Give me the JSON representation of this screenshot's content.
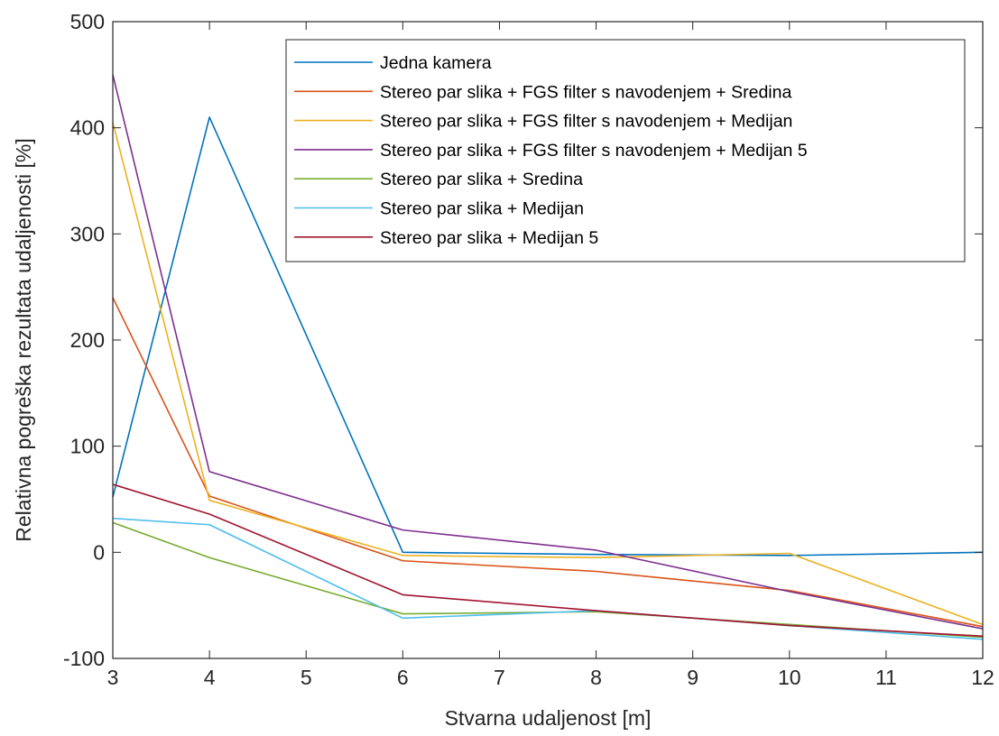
{
  "chart_data": {
    "type": "line",
    "title": "",
    "xlabel": "Stvarna udaljenost [m]",
    "ylabel": "Relativna pogreška rezultata udaljenosti [%]",
    "xlim": [
      3,
      12
    ],
    "ylim": [
      -100,
      500
    ],
    "xticks": [
      3,
      4,
      5,
      6,
      7,
      8,
      9,
      10,
      11,
      12
    ],
    "yticks": [
      -100,
      0,
      100,
      200,
      300,
      400,
      500
    ],
    "x": [
      3,
      4,
      6,
      8,
      10,
      12
    ],
    "grid": false,
    "legend_position": "top-right",
    "series": [
      {
        "name": "Jedna kamera",
        "color": "#0072BD",
        "values": [
          52,
          410,
          0,
          -2,
          -3,
          0
        ]
      },
      {
        "name": "Stereo par slika + FGS filter s navodenjem + Sredina",
        "color": "#D95319",
        "values": [
          240,
          53,
          -8,
          -18,
          -36,
          -70
        ]
      },
      {
        "name": "Stereo par slika + FGS filter s navodenjem + Medijan",
        "color": "#EDB120",
        "values": [
          405,
          49,
          -3,
          -5,
          -1,
          -68
        ]
      },
      {
        "name": "Stereo par slika + FGS filter s navodenjem + Medijan 5",
        "color": "#7E2F8E",
        "values": [
          450,
          76,
          21,
          2,
          -37,
          -72
        ]
      },
      {
        "name": "Stereo par slika + Sredina",
        "color": "#77AC30",
        "values": [
          28,
          -5,
          -58,
          -56,
          -68,
          -80
        ]
      },
      {
        "name": "Stereo par slika + Medijan",
        "color": "#4DBEEE",
        "values": [
          32,
          26,
          -62,
          -55,
          -69,
          -82
        ]
      },
      {
        "name": "Stereo par slika + Medijan 5",
        "color": "#A2142F",
        "values": [
          64,
          36,
          -40,
          -55,
          -69,
          -79
        ]
      }
    ]
  }
}
